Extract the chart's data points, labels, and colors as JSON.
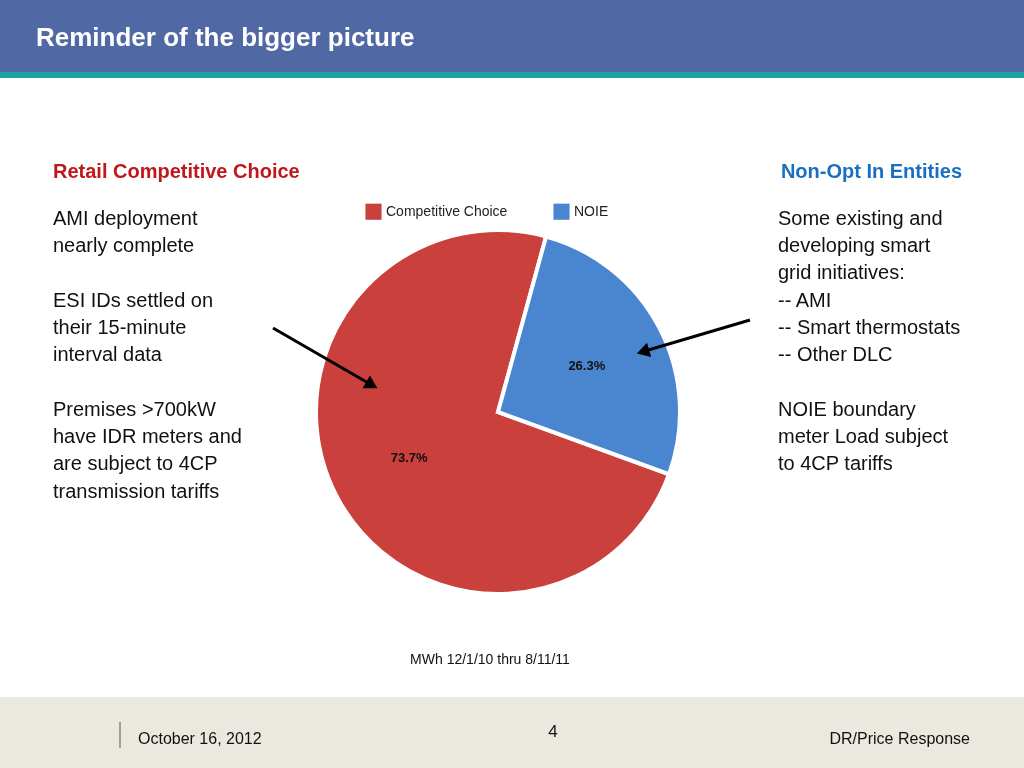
{
  "chart_data": {
    "type": "pie",
    "title": "Reminder of the bigger picture",
    "categories": [
      "Competitive Choice",
      "NOIE"
    ],
    "values": [
      73.7,
      26.3
    ],
    "colors": [
      "#c9403c",
      "#4a86cf"
    ],
    "value_labels": [
      "73.7%",
      "26.3%"
    ],
    "legend": "top",
    "annotations": [
      "Retail Competitive Choice",
      "AMI deployment\nnearly complete",
      "ESI IDs settled on\ntheir 15-minute\ninterval data",
      "Premises >700kW\nhave IDR meters and\nare subject to 4CP\ntransmission tariffs",
      "Non-Opt In Entities",
      "Some existing and\ndeveloping smart\ngrid initiatives:\n-- AMI\n-- Smart thermostats\n-- Other DLC",
      "NOIE boundary\nmeter Load subject\nto 4CP tariffs",
      "MWh 12/1/10 thru 8/11/11",
      "October 16, 2012",
      "4",
      "DR/Price Response"
    ]
  }
}
